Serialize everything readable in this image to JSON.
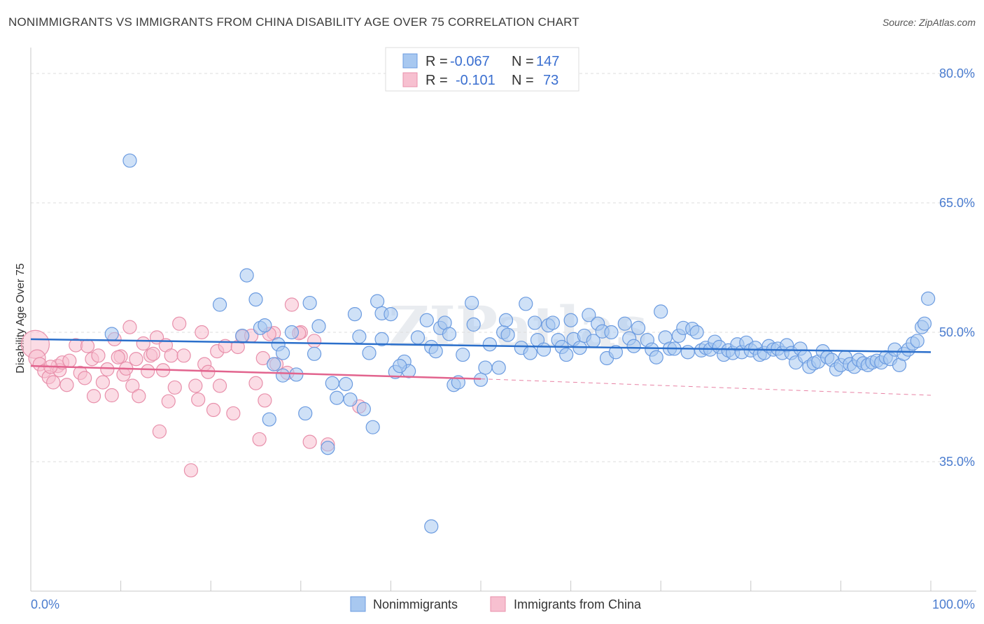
{
  "title": "NONIMMIGRANTS VS IMMIGRANTS FROM CHINA DISABILITY AGE OVER 75 CORRELATION CHART",
  "source": "Source: ZipAtlas.com",
  "watermark": "ZIPatlas",
  "colors": {
    "blue_fill": "#a8c8f0",
    "blue_stroke": "#6b9be0",
    "blue_line": "#2b6fcb",
    "pink_fill": "#f7c0d0",
    "pink_stroke": "#e890ab",
    "pink_line": "#e2648e",
    "tick_text": "#4a7ccf",
    "grid": "#dddddd"
  },
  "legend": {
    "rows": [
      {
        "r_label": "R =",
        "r_value": "-0.067",
        "n_label": "N =",
        "n_value": "147"
      },
      {
        "r_label": "R =",
        "r_value": "-0.101",
        "n_label": "N =",
        "n_value": "73"
      }
    ]
  },
  "bottom_legend": [
    "Nonimmigrants",
    "Immigrants from China"
  ],
  "chart_data": {
    "type": "scatter",
    "title": "NONIMMIGRANTS VS IMMIGRANTS FROM CHINA DISABILITY AGE OVER 75 CORRELATION CHART",
    "xlabel": "",
    "ylabel": "Disability Age Over 75",
    "xlim": [
      0,
      100
    ],
    "ylim": [
      20,
      83
    ],
    "x_tick_labels": [
      "0.0%",
      "100.0%"
    ],
    "y_ticks": [
      35,
      50,
      65,
      80
    ],
    "y_tick_labels": [
      "35.0%",
      "50.0%",
      "65.0%",
      "80.0%"
    ],
    "grid": true,
    "legend_placement": "top-center",
    "series": [
      {
        "name": "Nonimmigrants",
        "r": -0.067,
        "n": 147,
        "trend": {
          "x": [
            0,
            100
          ],
          "y": [
            49.2,
            47.7
          ]
        },
        "points": [
          [
            9,
            49.8
          ],
          [
            11,
            69.9
          ],
          [
            21,
            53.2
          ],
          [
            24,
            56.6
          ],
          [
            25,
            53.8
          ],
          [
            25.5,
            50.5
          ],
          [
            26,
            50.8
          ],
          [
            27,
            46.3
          ],
          [
            27.5,
            48.6
          ],
          [
            28,
            47.6
          ],
          [
            29,
            50.0
          ],
          [
            29.5,
            45.1
          ],
          [
            31,
            53.4
          ],
          [
            32,
            50.7
          ],
          [
            33.5,
            44.1
          ],
          [
            34,
            42.4
          ],
          [
            35,
            44.0
          ],
          [
            35.5,
            42.2
          ],
          [
            36,
            52.1
          ],
          [
            37,
            41.1
          ],
          [
            37.6,
            47.6
          ],
          [
            38.5,
            53.6
          ],
          [
            39,
            52.2
          ],
          [
            39,
            49.2
          ],
          [
            40,
            52.1
          ],
          [
            41.5,
            46.6
          ],
          [
            42,
            45.5
          ],
          [
            43,
            49.4
          ],
          [
            44,
            51.4
          ],
          [
            44.5,
            48.3
          ],
          [
            45,
            47.8
          ],
          [
            47,
            43.9
          ],
          [
            47.5,
            44.2
          ],
          [
            48,
            47.4
          ],
          [
            49,
            53.4
          ],
          [
            49.2,
            50.9
          ],
          [
            50.5,
            45.9
          ],
          [
            51,
            48.6
          ],
          [
            52,
            45.9
          ],
          [
            52.5,
            50.0
          ],
          [
            52.8,
            51.4
          ],
          [
            53,
            49.7
          ],
          [
            54.5,
            48.2
          ],
          [
            55,
            53.3
          ],
          [
            55.5,
            47.6
          ],
          [
            56,
            51.1
          ],
          [
            56.3,
            49.1
          ],
          [
            57,
            48.0
          ],
          [
            57.5,
            50.8
          ],
          [
            58,
            51.1
          ],
          [
            58.6,
            49.1
          ],
          [
            59,
            48.3
          ],
          [
            59.5,
            47.4
          ],
          [
            60,
            51.4
          ],
          [
            60.3,
            49.2
          ],
          [
            61,
            48.2
          ],
          [
            61.5,
            49.6
          ],
          [
            62,
            52.0
          ],
          [
            62.5,
            49.0
          ],
          [
            63,
            51.0
          ],
          [
            63.5,
            50.1
          ],
          [
            64,
            47.0
          ],
          [
            64.5,
            50.0
          ],
          [
            65,
            47.7
          ],
          [
            66,
            51.0
          ],
          [
            66.5,
            49.3
          ],
          [
            67,
            48.4
          ],
          [
            67.5,
            50.5
          ],
          [
            68.5,
            49.1
          ],
          [
            69,
            48.0
          ],
          [
            69.5,
            47.1
          ],
          [
            70,
            52.4
          ],
          [
            70.5,
            49.4
          ],
          [
            71,
            48.1
          ],
          [
            71.5,
            48.1
          ],
          [
            72,
            49.6
          ],
          [
            72.5,
            50.5
          ],
          [
            73,
            47.7
          ],
          [
            73.5,
            50.4
          ],
          [
            74,
            50.0
          ],
          [
            74.5,
            47.9
          ],
          [
            75,
            48.2
          ],
          [
            75.5,
            48.0
          ],
          [
            76,
            48.9
          ],
          [
            76.5,
            48.3
          ],
          [
            77,
            47.4
          ],
          [
            77.5,
            47.9
          ],
          [
            78,
            47.6
          ],
          [
            78.5,
            48.6
          ],
          [
            79,
            47.7
          ],
          [
            79.5,
            48.8
          ],
          [
            80,
            47.9
          ],
          [
            80.5,
            48.2
          ],
          [
            81,
            47.4
          ],
          [
            81.5,
            47.6
          ],
          [
            82,
            48.4
          ],
          [
            82.5,
            48.0
          ],
          [
            83,
            48.1
          ],
          [
            83.5,
            47.6
          ],
          [
            84,
            48.5
          ],
          [
            84.5,
            47.6
          ],
          [
            85,
            46.5
          ],
          [
            85.5,
            48.1
          ],
          [
            86,
            47.2
          ],
          [
            86.5,
            46.0
          ],
          [
            87,
            46.4
          ],
          [
            87.5,
            46.6
          ],
          [
            88,
            47.8
          ],
          [
            88.5,
            47.1
          ],
          [
            89,
            46.8
          ],
          [
            89.5,
            45.7
          ],
          [
            90,
            46.2
          ],
          [
            90.5,
            47.1
          ],
          [
            91,
            46.3
          ],
          [
            91.5,
            46.0
          ],
          [
            92,
            46.8
          ],
          [
            92.5,
            46.4
          ],
          [
            93,
            46.2
          ],
          [
            93.5,
            46.5
          ],
          [
            94,
            46.7
          ],
          [
            94.5,
            46.5
          ],
          [
            95,
            47.1
          ],
          [
            95.5,
            46.9
          ],
          [
            96,
            48.0
          ],
          [
            96.5,
            46.2
          ],
          [
            97,
            47.5
          ],
          [
            97.5,
            48.0
          ],
          [
            98,
            48.7
          ],
          [
            98.5,
            49.0
          ],
          [
            99,
            50.6
          ],
          [
            99.3,
            51.0
          ],
          [
            99.7,
            53.9
          ],
          [
            40.5,
            45.4
          ],
          [
            41,
            46.1
          ],
          [
            26.5,
            39.9
          ],
          [
            30.5,
            40.6
          ],
          [
            33,
            36.6
          ],
          [
            38,
            39.0
          ],
          [
            44.5,
            27.5
          ],
          [
            45.5,
            50.5
          ],
          [
            46,
            51.1
          ],
          [
            36.5,
            49.5
          ],
          [
            28,
            45.0
          ],
          [
            23.5,
            49.6
          ],
          [
            46.5,
            49.8
          ],
          [
            50,
            44.5
          ],
          [
            31.5,
            47.5
          ]
        ]
      },
      {
        "name": "Immigrants from China",
        "r": -0.101,
        "n": 73,
        "trend": {
          "x": [
            0,
            50
          ],
          "y": [
            46.1,
            44.6
          ]
        },
        "trend_dashed": {
          "x": [
            50,
            100
          ],
          "y": [
            44.6,
            42.7
          ]
        },
        "points": [
          [
            0.5,
            48.6
          ],
          [
            0.7,
            47.0
          ],
          [
            1,
            46.3
          ],
          [
            1.5,
            45.5
          ],
          [
            2,
            44.8
          ],
          [
            2.5,
            44.2
          ],
          [
            3,
            46.1
          ],
          [
            3.2,
            45.6
          ],
          [
            3.5,
            46.5
          ],
          [
            4,
            43.9
          ],
          [
            4.3,
            46.7
          ],
          [
            5,
            48.5
          ],
          [
            5.5,
            45.3
          ],
          [
            6,
            44.7
          ],
          [
            6.3,
            48.4
          ],
          [
            6.8,
            46.9
          ],
          [
            7,
            42.6
          ],
          [
            7.5,
            47.3
          ],
          [
            8,
            44.2
          ],
          [
            8.5,
            45.7
          ],
          [
            9,
            42.7
          ],
          [
            9.3,
            49.2
          ],
          [
            10,
            47.2
          ],
          [
            10.3,
            45.1
          ],
          [
            10.6,
            45.8
          ],
          [
            11,
            50.6
          ],
          [
            11.3,
            43.8
          ],
          [
            11.7,
            46.9
          ],
          [
            12,
            42.6
          ],
          [
            12.5,
            48.7
          ],
          [
            13,
            45.5
          ],
          [
            13.3,
            47.3
          ],
          [
            13.6,
            47.5
          ],
          [
            14,
            49.4
          ],
          [
            14.3,
            38.5
          ],
          [
            14.7,
            45.6
          ],
          [
            15,
            48.5
          ],
          [
            15.3,
            42.0
          ],
          [
            15.6,
            47.3
          ],
          [
            16,
            43.6
          ],
          [
            16.5,
            51.0
          ],
          [
            17,
            47.3
          ],
          [
            17.8,
            34.0
          ],
          [
            18.3,
            43.8
          ],
          [
            18.6,
            42.2
          ],
          [
            19,
            50.0
          ],
          [
            19.3,
            46.3
          ],
          [
            19.7,
            45.4
          ],
          [
            20.3,
            41.0
          ],
          [
            20.7,
            47.8
          ],
          [
            21,
            43.8
          ],
          [
            21.6,
            48.4
          ],
          [
            22.5,
            40.6
          ],
          [
            23,
            48.3
          ],
          [
            23.5,
            49.5
          ],
          [
            24.5,
            49.6
          ],
          [
            25,
            44.1
          ],
          [
            25.4,
            37.6
          ],
          [
            26,
            42.1
          ],
          [
            27,
            49.9
          ],
          [
            27.3,
            46.3
          ],
          [
            28.5,
            45.3
          ],
          [
            29,
            53.2
          ],
          [
            30,
            50.0
          ],
          [
            31,
            37.3
          ],
          [
            31.5,
            49.0
          ],
          [
            33,
            37.0
          ],
          [
            36.5,
            41.4
          ],
          [
            26.5,
            49.8
          ],
          [
            25.8,
            47.0
          ],
          [
            29.8,
            49.9
          ],
          [
            2.2,
            46.0
          ],
          [
            9.7,
            47.1
          ]
        ]
      }
    ]
  }
}
